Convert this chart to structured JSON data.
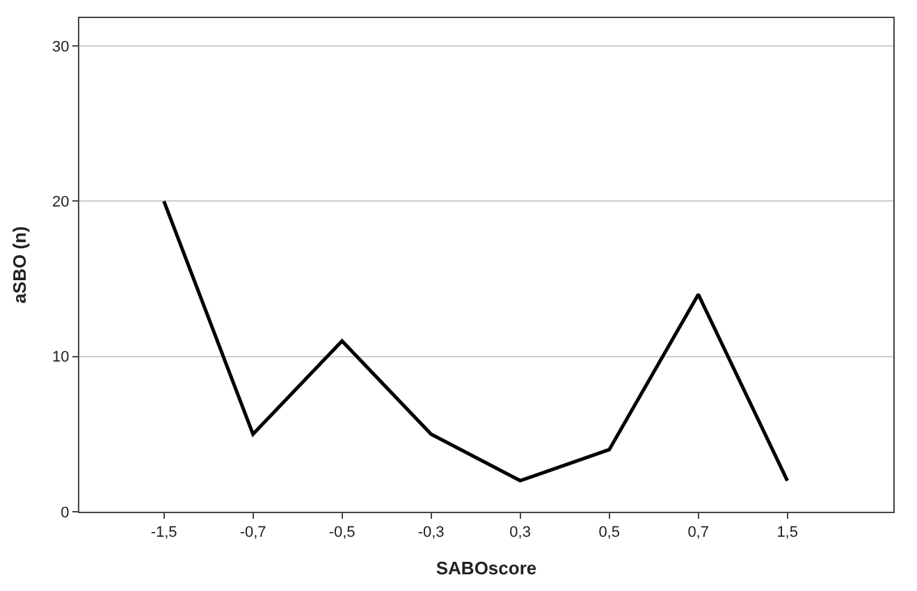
{
  "chart_data": {
    "type": "line",
    "xlabel": "SABOscore",
    "ylabel": "aSBO (n)",
    "categories": [
      "-1,5",
      "-0,7",
      "-0,5",
      "-0,3",
      "0,3",
      "0,5",
      "0,7",
      "1,5"
    ],
    "series": [
      {
        "color": "#000000",
        "values": [
          20,
          5,
          11,
          5,
          2,
          4,
          14,
          2
        ]
      }
    ],
    "ylim": [
      0,
      31.8
    ],
    "yticks": [
      0,
      10,
      20,
      30
    ],
    "grid": "y",
    "marker": "none",
    "line_style": "solid"
  }
}
